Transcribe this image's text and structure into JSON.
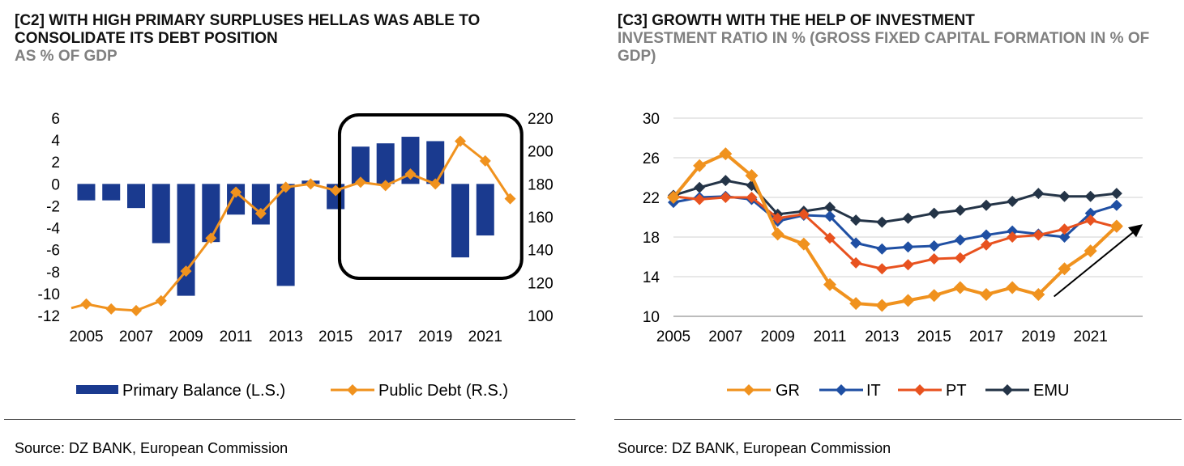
{
  "colors": {
    "primary_balance": "#1a3a8f",
    "public_debt": "#f0921e",
    "gr": "#f0921e",
    "it": "#1f4fa3",
    "pt": "#e8521f",
    "emu": "#243447",
    "highlight_box": "#000000",
    "arrow": "#000000"
  },
  "left": {
    "title": "[C2] WITH HIGH PRIMARY SURPLUSES HELLAS WAS ABLE TO CONSOLIDATE ITS DEBT POSITION",
    "subtitle": "AS % OF GDP",
    "source": "Source: DZ BANK, European Commission"
  },
  "right": {
    "title": "[C3] GROWTH WITH THE HELP OF INVESTMENT",
    "subtitle": "INVESTMENT RATIO IN % (GROSS FIXED CAPITAL FORMATION IN % OF GDP)",
    "source": "Source: DZ BANK, European Commission"
  },
  "chart_data": [
    {
      "type": "bar",
      "x": [
        2005,
        2006,
        2007,
        2008,
        2009,
        2010,
        2011,
        2012,
        2013,
        2014,
        2015,
        2016,
        2017,
        2018,
        2019,
        2020,
        2021,
        2022
      ],
      "x_tick_labels": [
        "2005",
        "2007",
        "2009",
        "2011",
        "2013",
        "2015",
        "2017",
        "2019",
        "2021"
      ],
      "series": [
        {
          "name": "Primary Balance (L.S.)",
          "type": "bar",
          "axis": "left",
          "values": [
            -1.5,
            -1.5,
            -2.2,
            -5.4,
            -10.2,
            -5.3,
            -2.8,
            -3.7,
            -9.3,
            0.3,
            -2.3,
            3.4,
            3.7,
            4.3,
            3.9,
            -6.7,
            -4.7,
            null
          ]
        },
        {
          "name": "Public Debt (R.S.)",
          "type": "line",
          "axis": "right",
          "values": [
            107,
            104,
            103,
            109,
            127,
            147,
            175,
            162,
            178,
            180,
            176,
            181,
            179,
            186,
            180,
            206,
            194,
            171
          ]
        }
      ],
      "y_left": {
        "ylim": [
          -12,
          6
        ],
        "ticks": [
          6,
          4,
          2,
          0,
          -2,
          -4,
          -6,
          -8,
          -10,
          -12
        ]
      },
      "y_right": {
        "ylim": [
          100,
          220
        ],
        "ticks": [
          220,
          200,
          180,
          160,
          140,
          120,
          100
        ]
      },
      "xlim": [
        2004.4,
        2022.6
      ],
      "highlight": {
        "x_range": [
          2016,
          2021
        ],
        "shape": "rounded-rectangle"
      },
      "grid": false,
      "legend": "bottom"
    },
    {
      "type": "line",
      "x": [
        2005,
        2006,
        2007,
        2008,
        2009,
        2010,
        2011,
        2012,
        2013,
        2014,
        2015,
        2016,
        2017,
        2018,
        2019,
        2020,
        2021,
        2022
      ],
      "x_tick_labels": [
        "2005",
        "2007",
        "2009",
        "2011",
        "2013",
        "2015",
        "2017",
        "2019",
        "2021"
      ],
      "series": [
        {
          "name": "GR",
          "values": [
            22,
            25.2,
            26.4,
            24.2,
            18.3,
            17.3,
            13.2,
            11.3,
            11.1,
            11.6,
            12.1,
            12.9,
            12.2,
            12.9,
            12.2,
            14.8,
            16.6,
            19.1
          ]
        },
        {
          "name": "IT",
          "values": [
            21.5,
            22,
            22.1,
            21.8,
            19.6,
            20.2,
            20.1,
            17.4,
            16.8,
            17.0,
            17.1,
            17.7,
            18.2,
            18.6,
            18.3,
            18.0,
            20.4,
            21.2
          ]
        },
        {
          "name": "PT",
          "values": [
            22.1,
            21.8,
            22.0,
            22.0,
            19.9,
            20.3,
            17.9,
            15.4,
            14.8,
            15.2,
            15.8,
            15.9,
            17.2,
            18.0,
            18.2,
            18.8,
            19.7,
            19.0
          ]
        },
        {
          "name": "EMU",
          "values": [
            22.2,
            23.0,
            23.7,
            23.2,
            20.3,
            20.6,
            21.0,
            19.7,
            19.5,
            19.9,
            20.4,
            20.7,
            21.2,
            21.6,
            22.4,
            22.1,
            22.1,
            22.4
          ]
        }
      ],
      "ylim": [
        10,
        30
      ],
      "y_ticks": [
        30,
        26,
        22,
        18,
        14,
        10
      ],
      "xlim": [
        2005,
        2023
      ],
      "grid": "horizontal",
      "legend": "bottom",
      "annotation": "upward-arrow"
    }
  ]
}
